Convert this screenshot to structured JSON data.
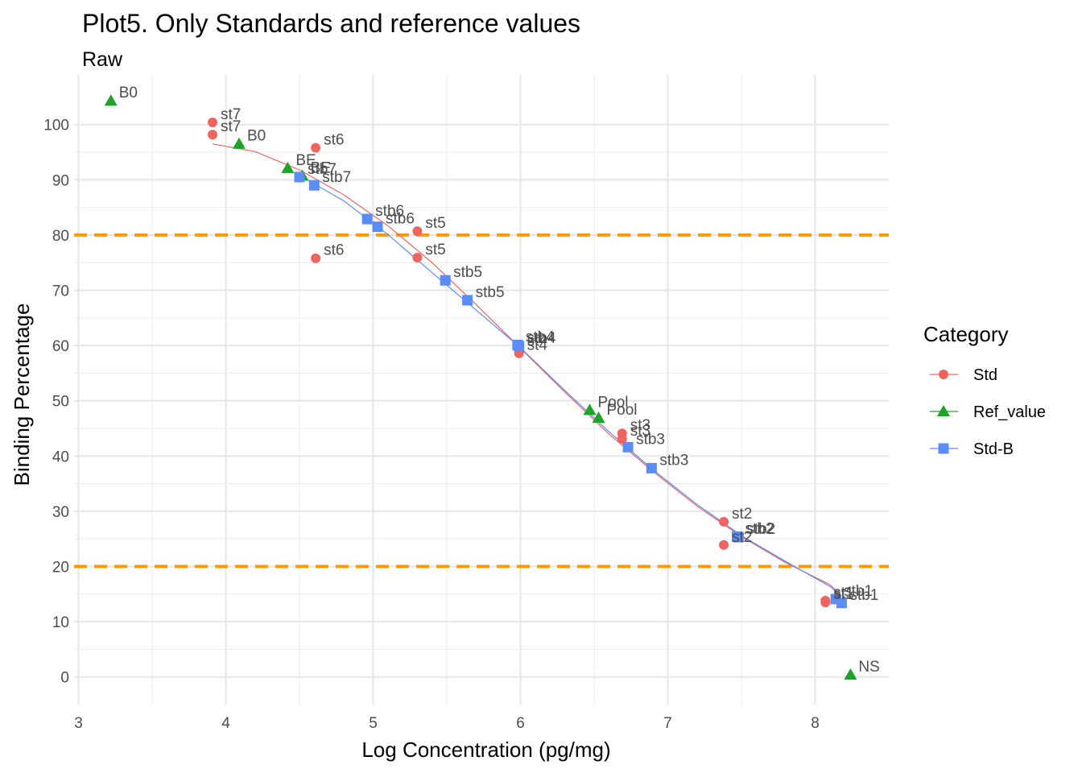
{
  "chart_data": {
    "type": "scatter",
    "title": "Plot5. Only Standards and reference values",
    "subtitle": "Raw",
    "xlabel": "Log Concentration (pg/mg)",
    "ylabel": "Binding Percentage",
    "xlim": [
      2.97,
      8.5
    ],
    "ylim": [
      -5,
      109
    ],
    "x_ticks": [
      3,
      4,
      5,
      6,
      7,
      8
    ],
    "y_ticks": [
      0,
      10,
      20,
      30,
      40,
      50,
      60,
      70,
      80,
      90,
      100
    ],
    "grid": true,
    "legend": {
      "title": "Category",
      "position": "right"
    },
    "hlines": [
      {
        "y": 80,
        "color": "#ff9900",
        "style": "dashed"
      },
      {
        "y": 20,
        "color": "#ff9900",
        "style": "dashed"
      }
    ],
    "series": [
      {
        "name": "Std",
        "color": "#f0645f",
        "marker": "circle",
        "points": [
          {
            "x": 3.91,
            "y": 100.4,
            "label": "st7"
          },
          {
            "x": 3.91,
            "y": 98.2,
            "label": "st7"
          },
          {
            "x": 4.61,
            "y": 95.8,
            "label": "st6"
          },
          {
            "x": 4.61,
            "y": 75.8,
            "label": "st6"
          },
          {
            "x": 5.3,
            "y": 80.7,
            "label": "st5"
          },
          {
            "x": 5.3,
            "y": 75.9,
            "label": "st5"
          },
          {
            "x": 5.99,
            "y": 59.4,
            "label": "st4"
          },
          {
            "x": 5.99,
            "y": 58.6,
            "label": "st4"
          },
          {
            "x": 6.69,
            "y": 44.1,
            "label": "st3"
          },
          {
            "x": 6.69,
            "y": 43.1,
            "label": "st3"
          },
          {
            "x": 7.38,
            "y": 28.1,
            "label": "st2"
          },
          {
            "x": 7.38,
            "y": 23.9,
            "label": "st2"
          },
          {
            "x": 8.07,
            "y": 13.8,
            "label": "st1"
          },
          {
            "x": 8.07,
            "y": 13.5,
            "label": "st1"
          }
        ],
        "curve": [
          [
            3.91,
            96.5
          ],
          [
            4.2,
            95.1
          ],
          [
            4.5,
            91.8
          ],
          [
            4.8,
            87.3
          ],
          [
            5.1,
            81.7
          ],
          [
            5.4,
            75.0
          ],
          [
            5.7,
            67.4
          ],
          [
            6.0,
            59.5
          ],
          [
            6.3,
            51.6
          ],
          [
            6.6,
            44.0
          ],
          [
            6.9,
            37.2
          ],
          [
            7.2,
            30.9
          ],
          [
            7.5,
            25.4
          ],
          [
            7.8,
            20.7
          ],
          [
            8.1,
            16.7
          ],
          [
            8.17,
            15.0
          ]
        ]
      },
      {
        "name": "Ref_value",
        "color": "#1ea329",
        "marker": "triangle",
        "points": [
          {
            "x": 3.22,
            "y": 104.3,
            "label": "B0"
          },
          {
            "x": 4.09,
            "y": 96.5,
            "label": "B0"
          },
          {
            "x": 4.42,
            "y": 92.1,
            "label": "BE"
          },
          {
            "x": 4.52,
            "y": 90.7,
            "label": "BE"
          },
          {
            "x": 6.47,
            "y": 48.3,
            "label": "Pool"
          },
          {
            "x": 6.53,
            "y": 46.9,
            "label": "Pool"
          },
          {
            "x": 8.24,
            "y": 0.4,
            "label": "NS"
          }
        ]
      },
      {
        "name": "Std-B",
        "color": "#5b8cf6",
        "marker": "square",
        "points": [
          {
            "x": 4.5,
            "y": 90.5,
            "label": "stb7"
          },
          {
            "x": 4.6,
            "y": 89.0,
            "label": "stb7"
          },
          {
            "x": 4.96,
            "y": 82.9,
            "label": "stb6"
          },
          {
            "x": 5.03,
            "y": 81.5,
            "label": "stb6"
          },
          {
            "x": 5.49,
            "y": 71.8,
            "label": "stb5"
          },
          {
            "x": 5.64,
            "y": 68.2,
            "label": "stb5"
          },
          {
            "x": 5.98,
            "y": 60.1,
            "label": "stb4"
          },
          {
            "x": 5.99,
            "y": 59.9,
            "label": "stb4"
          },
          {
            "x": 6.73,
            "y": 41.6,
            "label": "stb3"
          },
          {
            "x": 6.89,
            "y": 37.8,
            "label": "stb3"
          },
          {
            "x": 7.47,
            "y": 25.4,
            "label": "stb2"
          },
          {
            "x": 7.48,
            "y": 25.3,
            "label": "stb2"
          },
          {
            "x": 8.14,
            "y": 14.1,
            "label": "stb1"
          },
          {
            "x": 8.18,
            "y": 13.4,
            "label": "stb1"
          }
        ],
        "curve": [
          [
            4.5,
            90.8
          ],
          [
            4.8,
            86.2
          ],
          [
            5.1,
            80.1
          ],
          [
            5.4,
            73.2
          ],
          [
            5.7,
            66.4
          ],
          [
            6.0,
            59.6
          ],
          [
            6.3,
            51.9
          ],
          [
            6.6,
            44.4
          ],
          [
            6.9,
            37.5
          ],
          [
            7.2,
            31.2
          ],
          [
            7.5,
            25.6
          ],
          [
            7.8,
            20.9
          ],
          [
            8.1,
            16.4
          ],
          [
            8.18,
            14.6
          ]
        ]
      }
    ]
  }
}
